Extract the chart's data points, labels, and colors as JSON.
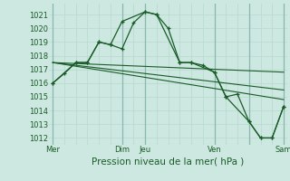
{
  "xlabel": "Pression niveau de la mer( hPa )",
  "background_color": "#cce8e0",
  "grid_color_minor": "#b8d8d0",
  "grid_color_major": "#88b8b0",
  "line_color": "#1a5c28",
  "ylim": [
    1011.5,
    1021.8
  ],
  "yticks": [
    1012,
    1013,
    1014,
    1015,
    1016,
    1017,
    1018,
    1019,
    1020,
    1021
  ],
  "xtick_labels": [
    "Mer",
    "",
    "Dim",
    "Jeu",
    "",
    "Ven",
    "",
    "Sam"
  ],
  "xtick_positions": [
    0,
    3,
    6,
    8,
    11,
    14,
    17,
    20
  ],
  "day_vlines": [
    0,
    6,
    8,
    14,
    17,
    20
  ],
  "series_main": {
    "x": [
      0,
      1,
      2,
      3,
      4,
      5,
      6,
      7,
      8,
      9,
      10,
      11,
      12,
      13,
      14,
      15,
      16,
      17,
      18,
      19,
      20
    ],
    "y": [
      1016.0,
      1016.7,
      1017.5,
      1017.5,
      1019.0,
      1018.8,
      1018.5,
      1020.4,
      1021.2,
      1021.0,
      1020.0,
      1017.5,
      1017.5,
      1017.3,
      1016.8,
      1015.0,
      1015.2,
      1013.2,
      1012.0,
      1012.0,
      1014.3
    ]
  },
  "series_smooth": {
    "x": [
      0,
      2,
      3,
      4,
      5,
      6,
      8,
      9,
      11,
      12,
      14,
      15,
      17,
      18,
      19,
      20
    ],
    "y": [
      1016.0,
      1017.5,
      1017.5,
      1019.0,
      1018.8,
      1020.5,
      1021.2,
      1021.0,
      1017.5,
      1017.5,
      1016.8,
      1015.0,
      1013.2,
      1012.0,
      1012.0,
      1014.3
    ]
  },
  "trend_lines": [
    {
      "x": [
        0,
        20
      ],
      "y": [
        1017.5,
        1016.8
      ]
    },
    {
      "x": [
        0,
        20
      ],
      "y": [
        1017.5,
        1015.5
      ]
    },
    {
      "x": [
        0,
        20
      ],
      "y": [
        1017.5,
        1014.8
      ]
    }
  ],
  "tick_fontsize": 6,
  "xlabel_fontsize": 7.5
}
